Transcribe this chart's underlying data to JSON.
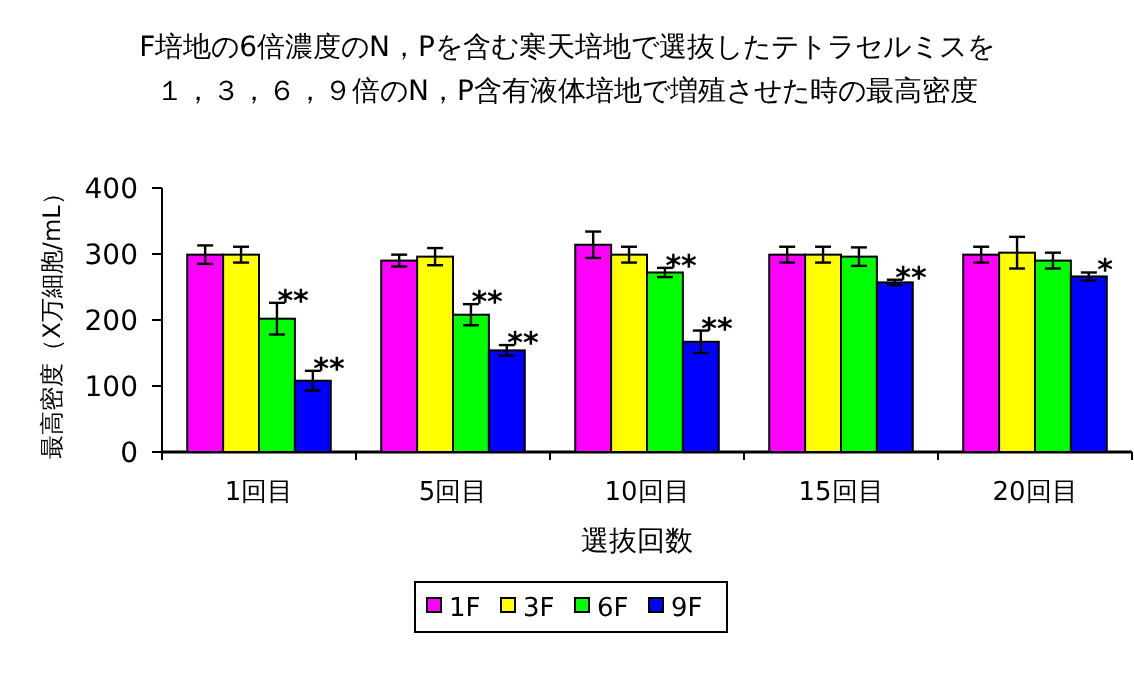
{
  "chart_data": {
    "type": "bar",
    "title": "F培地の6倍濃度のN，Pを含む寒天培地で選抜したテトラセルミスを",
    "subtitle": "１，３，６，９倍のN，P含有液体培地で増殖させた時の最高密度",
    "xlabel": "選抜回数",
    "ylabel": "最高密度（X万細胞/mL）",
    "categories": [
      "1回目",
      "5回目",
      "10回目",
      "15回目",
      "20回目"
    ],
    "ylim": [
      0,
      400
    ],
    "yticks": [
      0,
      100,
      200,
      300,
      400
    ],
    "grid": false,
    "legend": "bottom",
    "series": [
      {
        "name": "1F",
        "color": "#ff00ff",
        "values": [
          299,
          290,
          314,
          299,
          299
        ],
        "errors": [
          14,
          9,
          20,
          12,
          12
        ]
      },
      {
        "name": "3F",
        "color": "#ffff00",
        "values": [
          299,
          296,
          299,
          299,
          302
        ],
        "errors": [
          12,
          13,
          12,
          12,
          24
        ]
      },
      {
        "name": "6F",
        "color": "#00ff00",
        "values": [
          202,
          208,
          272,
          296,
          290
        ],
        "errors": [
          24,
          16,
          7,
          14,
          12
        ],
        "value_labels": [
          "**",
          "**",
          "**",
          null,
          null
        ]
      },
      {
        "name": "9F",
        "color": "#0000ff",
        "values": [
          108,
          154,
          167,
          257,
          266
        ],
        "errors": [
          15,
          8,
          17,
          4,
          6
        ],
        "value_labels": [
          "**",
          "**",
          "**",
          "**",
          "*"
        ]
      }
    ]
  }
}
